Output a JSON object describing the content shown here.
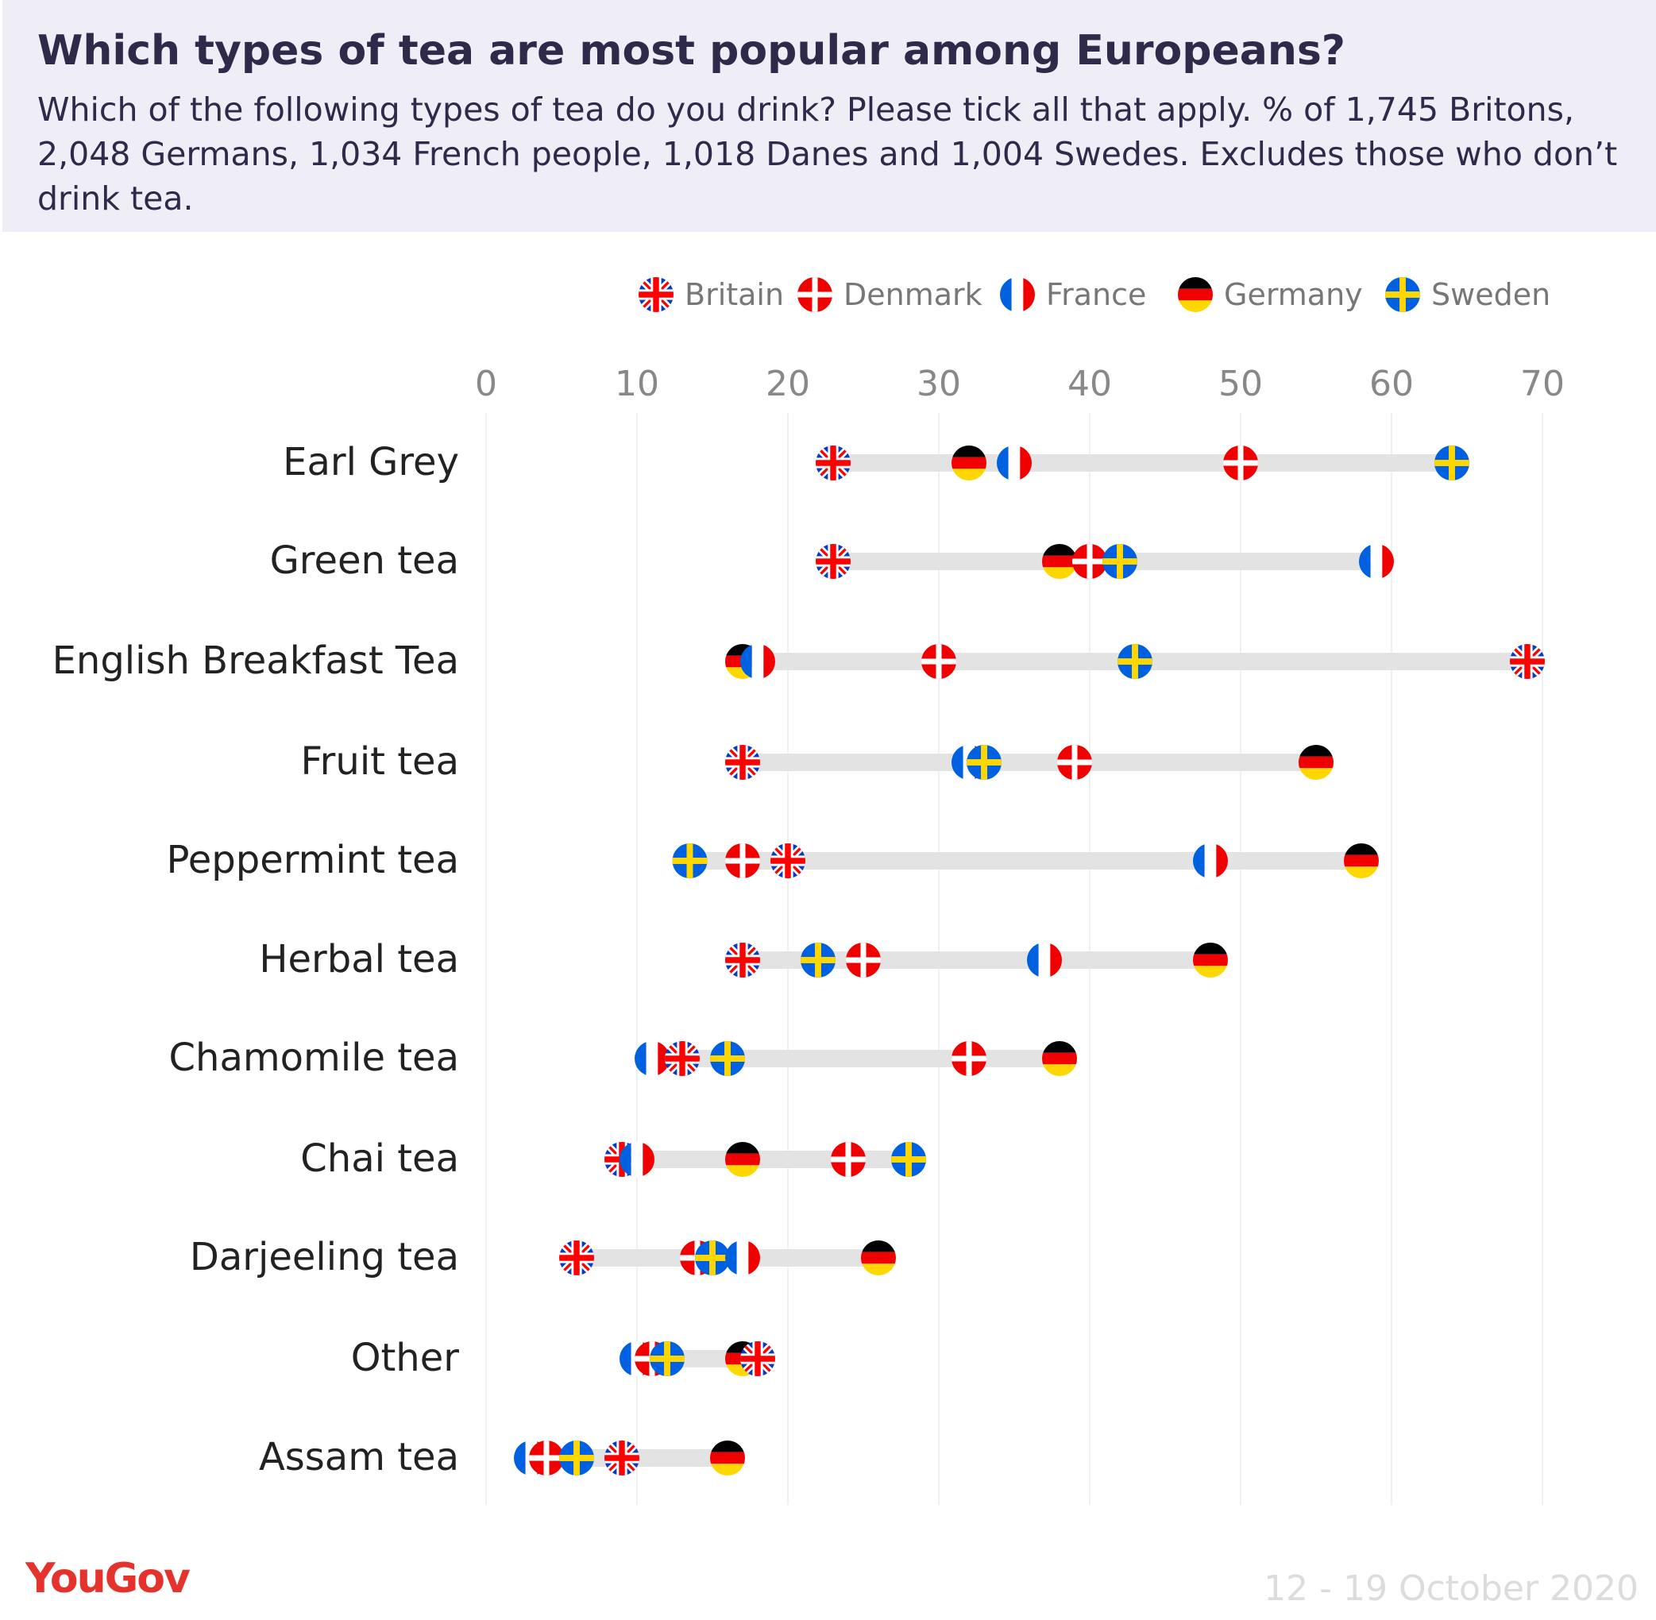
{
  "header": {
    "title": "Which types of tea are most popular among Europeans?",
    "subtitle": "Which of the following types of tea do you drink? Please tick all that apply. % of 1,745 Britons, 2,048 Germans, 1,034 French people, 1,018 Danes and 1,004 Swedes. Excludes those who don’t drink tea."
  },
  "footer": {
    "logo": "YouGov",
    "date": "12 - 19 October 2020"
  },
  "chart_data": {
    "type": "dot-range",
    "xlim": [
      0,
      70
    ],
    "ticks": [
      "0",
      "10",
      "20",
      "30",
      "40",
      "50",
      "60",
      "70"
    ],
    "legend_placement": "top-right",
    "colors": {
      "bar": "#e3e3e3",
      "grid": "#f0f0f0"
    },
    "categories": [
      "Earl Grey",
      "Green tea",
      "English Breakfast Tea",
      "Fruit tea",
      "Peppermint tea",
      "Herbal tea",
      "Chamomile tea",
      "Chai tea",
      "Darjeeling tea",
      "Other",
      "Assam tea"
    ],
    "series": [
      {
        "name": "Britain",
        "values": [
          23,
          23,
          69,
          17,
          20,
          17,
          13,
          9,
          6,
          18,
          9
        ]
      },
      {
        "name": "Denmark",
        "values": [
          50,
          40,
          30,
          39,
          17,
          25,
          32,
          24,
          14,
          11,
          4
        ]
      },
      {
        "name": "France",
        "values": [
          35,
          59,
          18,
          32,
          48,
          37,
          11,
          10,
          17,
          10,
          3
        ]
      },
      {
        "name": "Germany",
        "values": [
          32,
          38,
          17,
          55,
          58,
          48,
          38,
          17,
          26,
          17,
          16
        ]
      },
      {
        "name": "Sweden",
        "values": [
          64,
          42,
          43,
          33,
          13.5,
          22,
          16,
          28,
          15,
          12,
          6
        ]
      }
    ]
  }
}
